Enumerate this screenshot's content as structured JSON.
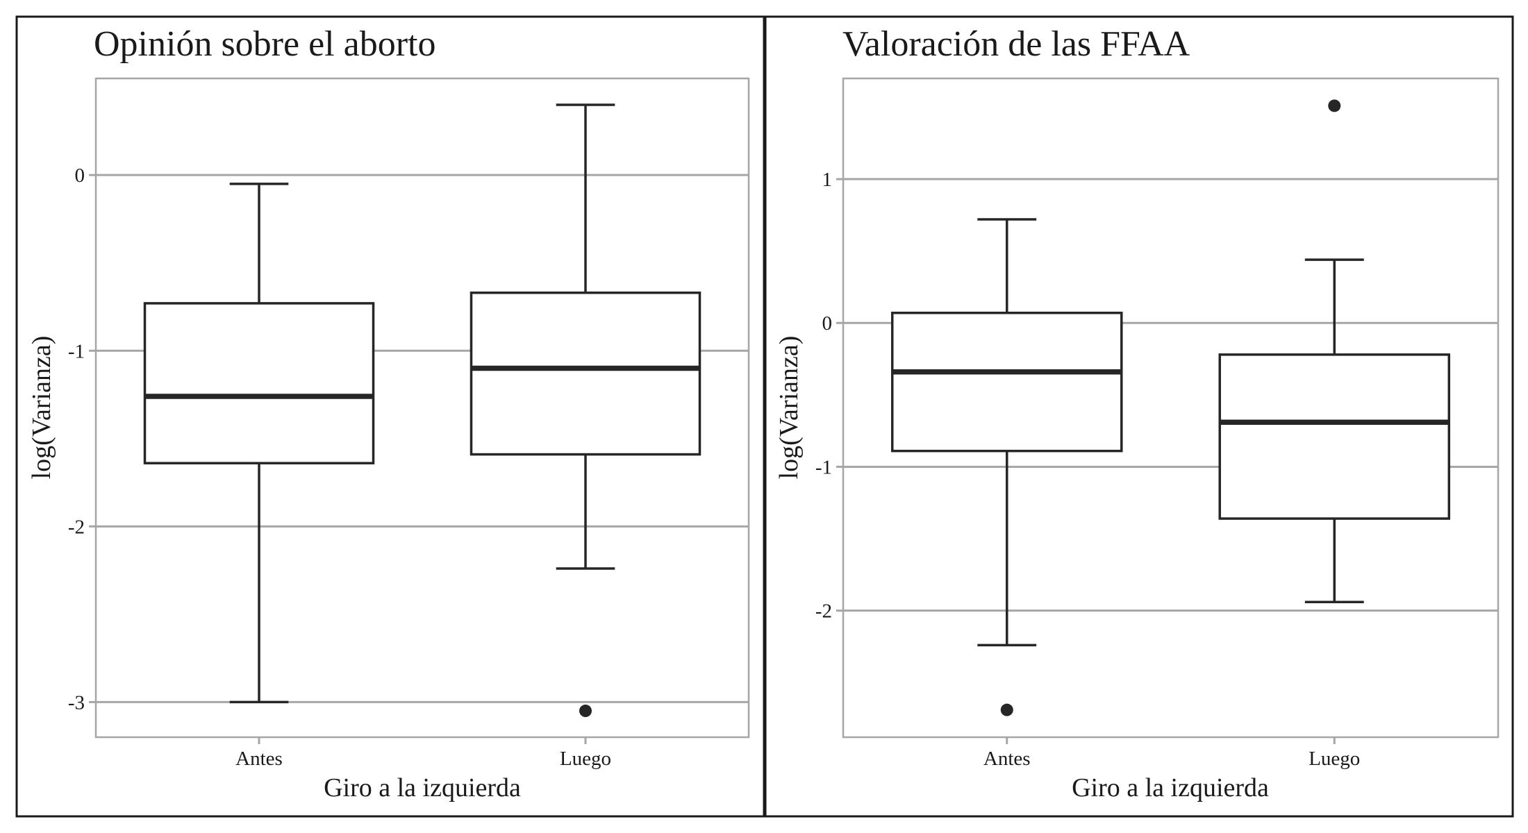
{
  "chart_data": [
    {
      "type": "box",
      "title": "Opinión sobre el aborto",
      "xlabel": "Giro a la izquierda",
      "ylabel": "log(Varianza)",
      "ylim": [
        -3.2,
        0.55
      ],
      "yticks": [
        0,
        -1,
        -2,
        -3
      ],
      "ytick_labels": [
        "0",
        "-1",
        "-2",
        "-3"
      ],
      "grid": true,
      "categories": [
        "Antes",
        "Luego"
      ],
      "boxes": [
        {
          "category": "Antes",
          "whisker_low": -3.0,
          "q1": -1.64,
          "median": -1.26,
          "q3": -0.73,
          "whisker_high": -0.05,
          "outliers": []
        },
        {
          "category": "Luego",
          "whisker_low": -2.24,
          "q1": -1.59,
          "median": -1.1,
          "q3": -0.67,
          "whisker_high": 0.4,
          "outliers": [
            -3.05
          ]
        }
      ]
    },
    {
      "type": "box",
      "title": "Valoración de las FFAA",
      "xlabel": "Giro a la izquierda",
      "ylabel": "log(Varianza)",
      "ylim": [
        -2.88,
        1.7
      ],
      "yticks": [
        1,
        0,
        -1,
        -2
      ],
      "ytick_labels": [
        "1",
        "0",
        "-1",
        "-2"
      ],
      "grid": true,
      "categories": [
        "Antes",
        "Luego"
      ],
      "boxes": [
        {
          "category": "Antes",
          "whisker_low": -2.24,
          "q1": -0.89,
          "median": -0.34,
          "q3": 0.07,
          "whisker_high": 0.72,
          "outliers": [
            -2.69
          ]
        },
        {
          "category": "Luego",
          "whisker_low": -1.94,
          "q1": -1.36,
          "median": -0.69,
          "q3": -0.22,
          "whisker_high": 0.44,
          "outliers": [
            1.51
          ]
        }
      ]
    }
  ]
}
